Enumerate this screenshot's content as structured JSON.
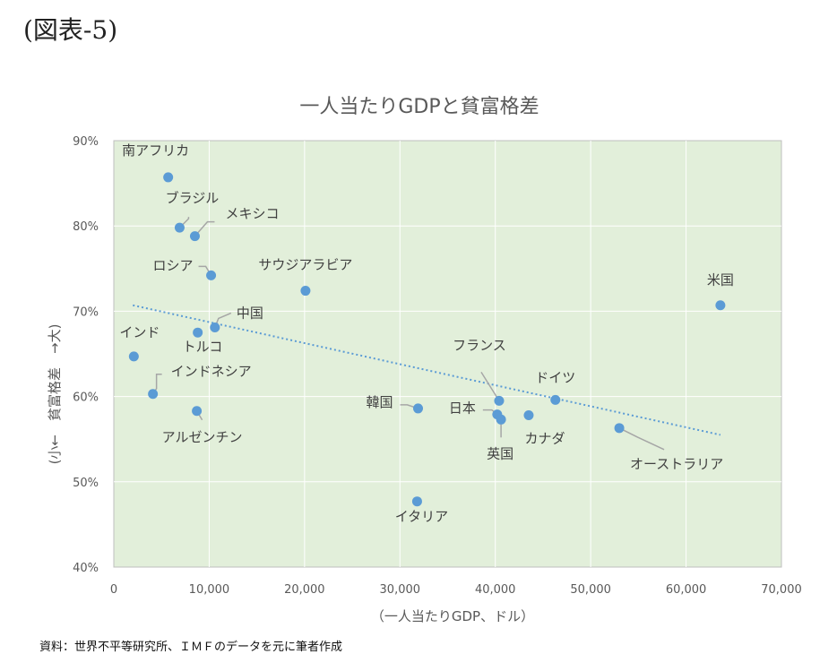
{
  "figure_label": "(図表-5)",
  "source_note": "資料：世界不平等研究所、ＩＭＦのデータを元に筆者作成",
  "colors": {
    "plot_background": "#e2efda",
    "point": "#5b9bd5",
    "trendline": "#5b9bd5",
    "gridline": "#ffffff",
    "leader_line": "#a6a6a6"
  },
  "chart_data": {
    "type": "scatter",
    "title": "一人当たりGDPと貧富格差",
    "xlabel": "（一人当たりGDP、ドル）",
    "ylabel": "(小←　貧富格差　→大)",
    "xlim": [
      0,
      70000
    ],
    "ylim": [
      40,
      90
    ],
    "x_ticks": [
      0,
      10000,
      20000,
      30000,
      40000,
      50000,
      60000,
      70000
    ],
    "x_tick_labels": [
      "0",
      "10,000",
      "20,000",
      "30,000",
      "40,000",
      "50,000",
      "60,000",
      "70,000"
    ],
    "y_ticks": [
      40,
      50,
      60,
      70,
      80,
      90
    ],
    "y_tick_labels": [
      "40%",
      "50%",
      "60%",
      "70%",
      "80%",
      "90%"
    ],
    "grid": true,
    "legend": false,
    "points": [
      {
        "label": "南アフリカ",
        "x": 5700,
        "y": 85.7
      },
      {
        "label": "ブラジル",
        "x": 6900,
        "y": 79.8
      },
      {
        "label": "メキシコ",
        "x": 8500,
        "y": 78.8
      },
      {
        "label": "ロシア",
        "x": 10200,
        "y": 74.2
      },
      {
        "label": "サウジアラビア",
        "x": 20100,
        "y": 72.4
      },
      {
        "label": "中国",
        "x": 10600,
        "y": 68.1
      },
      {
        "label": "トルコ",
        "x": 8800,
        "y": 67.5
      },
      {
        "label": "インド",
        "x": 2100,
        "y": 64.7
      },
      {
        "label": "インドネシア",
        "x": 4100,
        "y": 60.3
      },
      {
        "label": "アルゼンチン",
        "x": 8700,
        "y": 58.3
      },
      {
        "label": "韓国",
        "x": 31900,
        "y": 58.6
      },
      {
        "label": "日本",
        "x": 40200,
        "y": 57.9
      },
      {
        "label": "英国",
        "x": 40600,
        "y": 57.3
      },
      {
        "label": "フランス",
        "x": 40400,
        "y": 59.5
      },
      {
        "label": "カナダ",
        "x": 43500,
        "y": 57.8
      },
      {
        "label": "ドイツ",
        "x": 46300,
        "y": 59.6
      },
      {
        "label": "オーストラリア",
        "x": 53000,
        "y": 56.3
      },
      {
        "label": "イタリア",
        "x": 31800,
        "y": 47.7
      },
      {
        "label": "米国",
        "x": 63600,
        "y": 70.7
      }
    ],
    "trendline": {
      "type": "linear",
      "x_start": 2000,
      "y_start": 70.7,
      "x_end": 63600,
      "y_end": 55.5
    }
  }
}
